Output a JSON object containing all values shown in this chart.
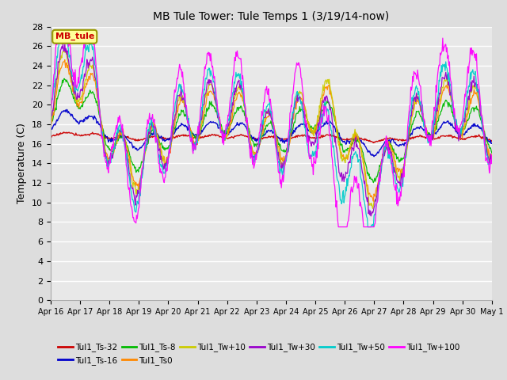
{
  "title": "MB Tule Tower: Tule Temps 1 (3/19/14-now)",
  "ylabel": "Temperature (C)",
  "ylim": [
    0,
    28
  ],
  "yticks": [
    0,
    2,
    4,
    6,
    8,
    10,
    12,
    14,
    16,
    18,
    20,
    22,
    24,
    26,
    28
  ],
  "legend_box_label": "MB_tule",
  "legend_box_color": "#cc0000",
  "legend_box_bg": "#ffff99",
  "series": [
    {
      "label": "Tul1_Ts-32",
      "color": "#cc0000"
    },
    {
      "label": "Tul1_Ts-16",
      "color": "#0000cc"
    },
    {
      "label": "Tul1_Ts-8",
      "color": "#00bb00"
    },
    {
      "label": "Tul1_Ts0",
      "color": "#ff8800"
    },
    {
      "label": "Tul1_Tw+10",
      "color": "#cccc00"
    },
    {
      "label": "Tul1_Tw+30",
      "color": "#9900cc"
    },
    {
      "label": "Tul1_Tw+50",
      "color": "#00cccc"
    },
    {
      "label": "Tul1_Tw+100",
      "color": "#ff00ff"
    }
  ],
  "x_tick_labels": [
    "Apr 16",
    "Apr 17",
    "Apr 18",
    "Apr 19",
    "Apr 20",
    "Apr 21",
    "Apr 22",
    "Apr 23",
    "Apr 24",
    "Apr 25",
    "Apr 26",
    "Apr 27",
    "Apr 28",
    "Apr 29",
    "Apr 30",
    "May 1"
  ],
  "background_color": "#dddddd",
  "plot_bg_color": "#e8e8e8",
  "grid_color": "#ffffff"
}
